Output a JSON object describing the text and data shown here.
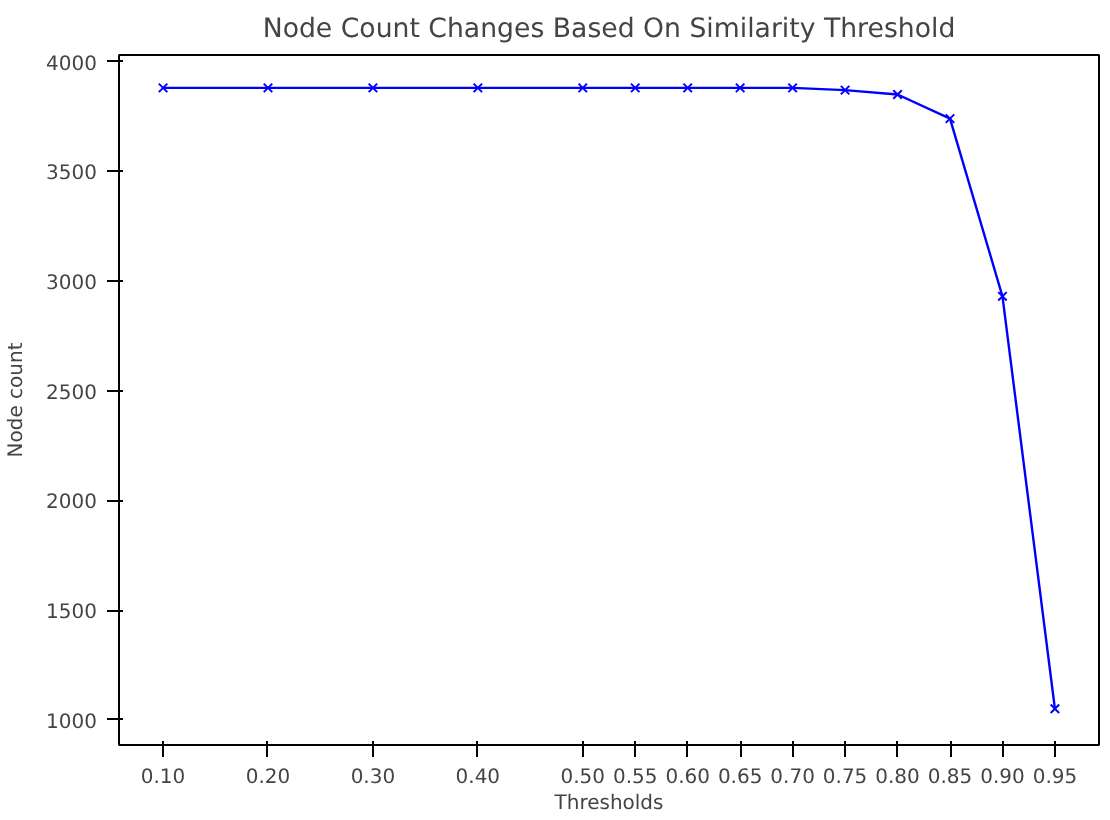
{
  "chart_data": {
    "type": "line",
    "title": "Node Count Changes Based On Similarity Threshold",
    "xlabel": "Thresholds",
    "ylabel": "Node count",
    "x": [
      0.1,
      0.2,
      0.3,
      0.4,
      0.5,
      0.55,
      0.6,
      0.65,
      0.7,
      0.75,
      0.8,
      0.85,
      0.9,
      0.95
    ],
    "series": [
      {
        "color": "#0000ff",
        "values": [
          3880,
          3880,
          3880,
          3880,
          3880,
          3880,
          3880,
          3880,
          3880,
          3870,
          3850,
          3740,
          2930,
          1050
        ]
      }
    ],
    "xlim": [
      0.058,
      0.992
    ],
    "ylim": [
      885,
      4030
    ],
    "xticks": [
      {
        "value": 0.1,
        "label": "0.10"
      },
      {
        "value": 0.2,
        "label": "0.20"
      },
      {
        "value": 0.3,
        "label": "0.30"
      },
      {
        "value": 0.4,
        "label": "0.40"
      },
      {
        "value": 0.5,
        "label": "0.50"
      },
      {
        "value": 0.55,
        "label": "0.55"
      },
      {
        "value": 0.6,
        "label": "0.60"
      },
      {
        "value": 0.65,
        "label": "0.65"
      },
      {
        "value": 0.7,
        "label": "0.70"
      },
      {
        "value": 0.75,
        "label": "0.75"
      },
      {
        "value": 0.8,
        "label": "0.80"
      },
      {
        "value": 0.85,
        "label": "0.85"
      },
      {
        "value": 0.9,
        "label": "0.90"
      },
      {
        "value": 0.95,
        "label": "0.95"
      }
    ],
    "yticks": [
      1000,
      1500,
      2000,
      2500,
      3000,
      3500,
      4000
    ],
    "marker": "cross",
    "line_style": "solid",
    "grid": false
  }
}
